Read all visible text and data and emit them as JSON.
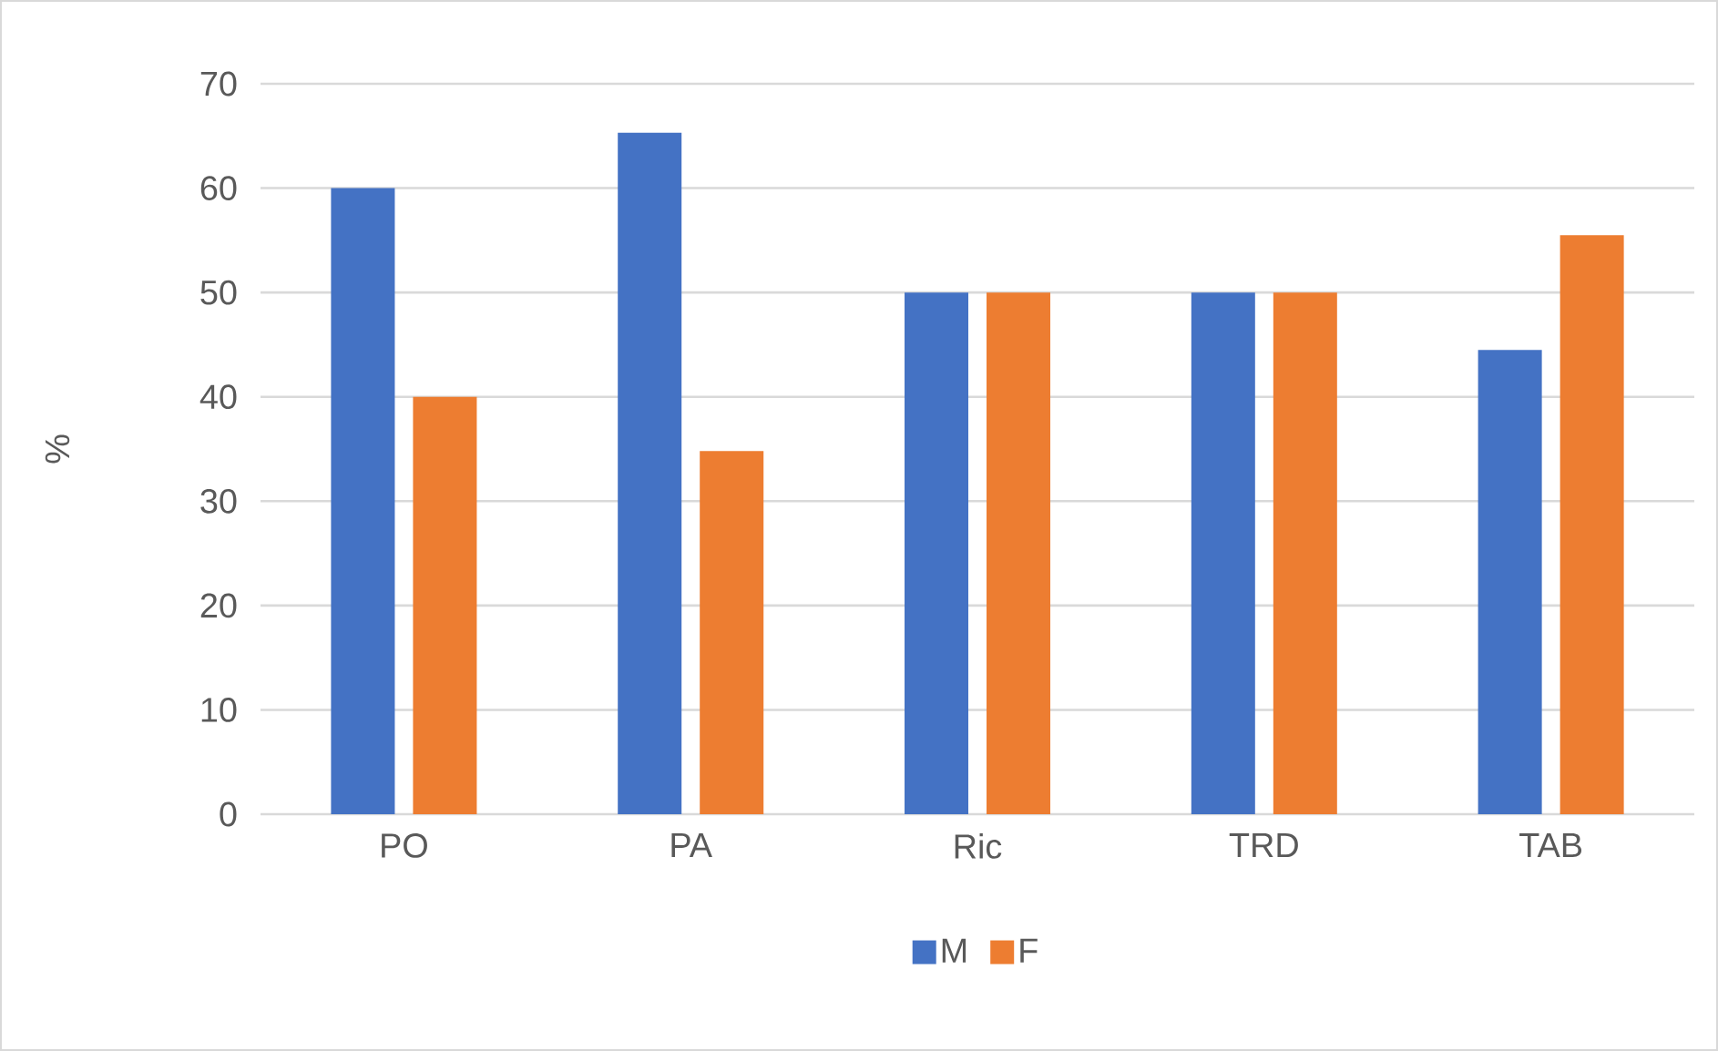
{
  "chart_data": {
    "type": "bar",
    "ylabel": "%",
    "categories": [
      "PO",
      "PA",
      "Ric",
      "TRD",
      "TAB"
    ],
    "series": [
      {
        "name": "M",
        "color": "#4472c4",
        "values": [
          60,
          65.3,
          50,
          50,
          44.5
        ]
      },
      {
        "name": "F",
        "color": "#ed7d31",
        "values": [
          40,
          34.8,
          50,
          50,
          55.5
        ]
      }
    ],
    "ylim": [
      0,
      70
    ],
    "yticks": [
      0,
      10,
      20,
      30,
      40,
      50,
      60,
      70
    ],
    "grid": "y",
    "legend": "bottom"
  }
}
